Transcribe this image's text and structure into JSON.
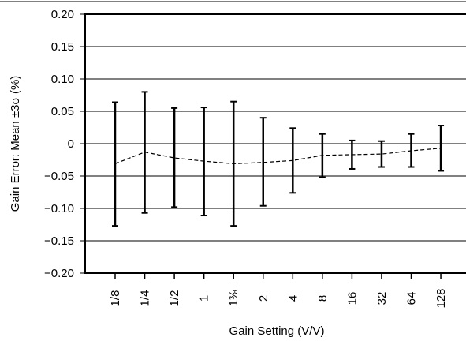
{
  "chart_data": {
    "type": "errorbar",
    "title": "",
    "xlabel": "Gain Setting (V/V)",
    "ylabel": "Gain Error: Mean ±3σ (%)",
    "ylim": [
      -0.2,
      0.2
    ],
    "yticks": [
      "0.20",
      "0.15",
      "0.10",
      "0.05",
      "0",
      "−0.05",
      "−0.10",
      "−0.15",
      "−0.20"
    ],
    "ytick_values": [
      0.2,
      0.15,
      0.1,
      0.05,
      0,
      -0.05,
      -0.1,
      -0.15,
      -0.2
    ],
    "grid": "horizontal",
    "categories": [
      "1/8",
      "1/4",
      "1/2",
      "1",
      "1⅜",
      "2",
      "4",
      "8",
      "16",
      "32",
      "64",
      "128"
    ],
    "series": [
      {
        "mean": [
          -0.031,
          -0.013,
          -0.022,
          -0.027,
          -0.031,
          -0.029,
          -0.026,
          -0.018,
          -0.017,
          -0.016,
          -0.011,
          -0.007
        ],
        "upper": [
          0.064,
          0.08,
          0.055,
          0.056,
          0.065,
          0.04,
          0.024,
          0.015,
          0.005,
          0.004,
          0.015,
          0.028
        ],
        "lower": [
          -0.127,
          -0.107,
          -0.098,
          -0.111,
          -0.127,
          -0.096,
          -0.076,
          -0.052,
          -0.039,
          -0.036,
          -0.036,
          -0.042
        ],
        "mean_line_style": "dashed"
      }
    ]
  }
}
